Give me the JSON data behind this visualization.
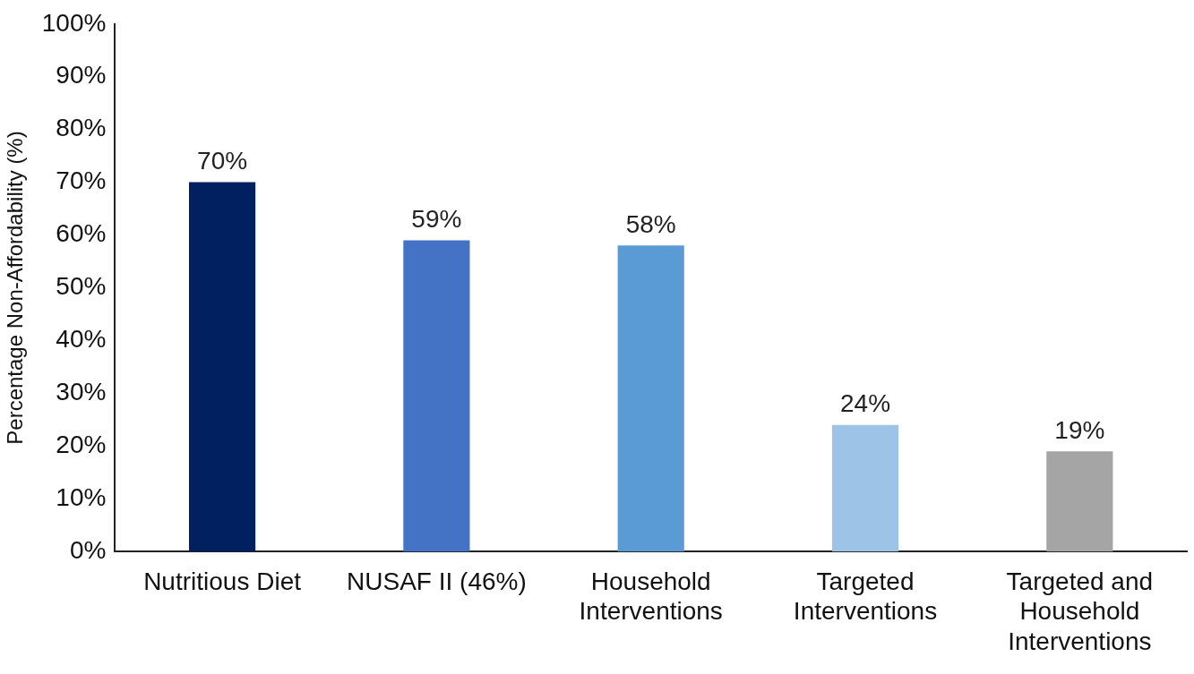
{
  "chart_data": {
    "type": "bar",
    "ylabel": "Percentage Non-Affordability (%)",
    "categories": [
      "Nutritious Diet",
      "NUSAF II (46%)",
      "Household Interventions",
      "Targeted Interventions",
      "Targeted and Household Interventions"
    ],
    "values": [
      70,
      59,
      58,
      24,
      19
    ],
    "colors": [
      "#002060",
      "#4472c4",
      "#5b9bd5",
      "#9dc3e6",
      "#a5a5a5"
    ],
    "value_labels": [
      "70%",
      "59%",
      "58%",
      "24%",
      "19%"
    ],
    "ylim": [
      0,
      100
    ],
    "yticks": [
      {
        "value": 0,
        "label": "0%"
      },
      {
        "value": 10,
        "label": "10%"
      },
      {
        "value": 20,
        "label": "20%"
      },
      {
        "value": 30,
        "label": "30%"
      },
      {
        "value": 40,
        "label": "40%"
      },
      {
        "value": 50,
        "label": "50%"
      },
      {
        "value": 60,
        "label": "60%"
      },
      {
        "value": 70,
        "label": "70%"
      },
      {
        "value": 80,
        "label": "80%"
      },
      {
        "value": 90,
        "label": "90%"
      },
      {
        "value": 100,
        "label": "100%"
      }
    ],
    "grid": false,
    "legend": false
  }
}
